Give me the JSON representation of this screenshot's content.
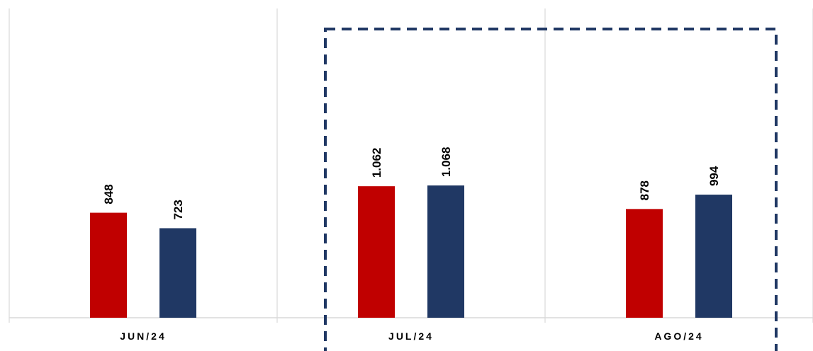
{
  "chart_data": {
    "type": "bar",
    "categories": [
      "JUN/24",
      "JUL/24",
      "AGO/24"
    ],
    "series": [
      {
        "values": [
          848,
          1062,
          878
        ],
        "labels": [
          "848",
          "1.062",
          "878"
        ],
        "color": "#C00000"
      },
      {
        "values": [
          723,
          1068,
          994
        ],
        "labels": [
          "723",
          "1.068",
          "994"
        ],
        "color": "#203864"
      }
    ],
    "ylim": [
      0,
      2000
    ],
    "grid": "vertical category separators",
    "highlight": {
      "categories": [
        "JUL/24",
        "AGO/24"
      ],
      "style": "dashed box",
      "color": "#203864"
    }
  }
}
